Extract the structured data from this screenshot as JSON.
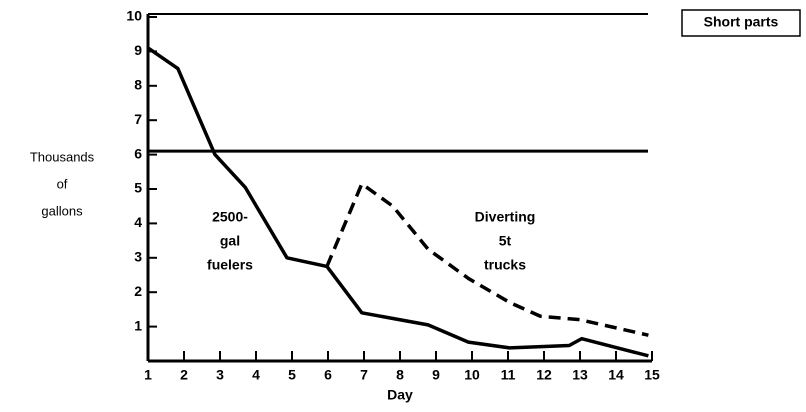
{
  "chart_data": {
    "type": "line",
    "ylabel": [
      "Thousands",
      "of",
      "gallons"
    ],
    "xlabel": "Day",
    "box_label": "Short parts",
    "annotations": [
      [
        "2500-",
        "gal",
        "fuelers"
      ],
      [
        "Diverting",
        "5t",
        "trucks"
      ]
    ],
    "xlim": [
      1,
      15
    ],
    "xticks": [
      1,
      2,
      3,
      4,
      5,
      6,
      7,
      8,
      9,
      10,
      11,
      12,
      13,
      14,
      15
    ],
    "ylim": [
      0,
      10
    ],
    "yticks": [
      1,
      2,
      3,
      4,
      5,
      6,
      7,
      8,
      9,
      10
    ],
    "hline": 6.1,
    "series": [
      {
        "color": "#000000",
        "dash": false,
        "x": [
          1,
          1.83,
          2.86,
          3.7,
          4.86,
          5.97,
          6.94,
          8.78,
          9.9,
          11.05,
          12.7,
          13.05,
          14.9
        ],
        "values": [
          9.1,
          8.5,
          6.0,
          5.05,
          3.0,
          2.75,
          1.4,
          1.05,
          0.55,
          0.38,
          0.45,
          0.65,
          0.15
        ]
      },
      {
        "color": "#000000",
        "dash": true,
        "x": [
          5.97,
          6.94,
          7.8,
          8.78,
          9.9,
          11.05,
          11.9,
          13.0,
          14.9
        ],
        "values": [
          2.75,
          5.15,
          4.5,
          3.25,
          2.4,
          1.7,
          1.3,
          1.2,
          0.75
        ]
      }
    ]
  }
}
